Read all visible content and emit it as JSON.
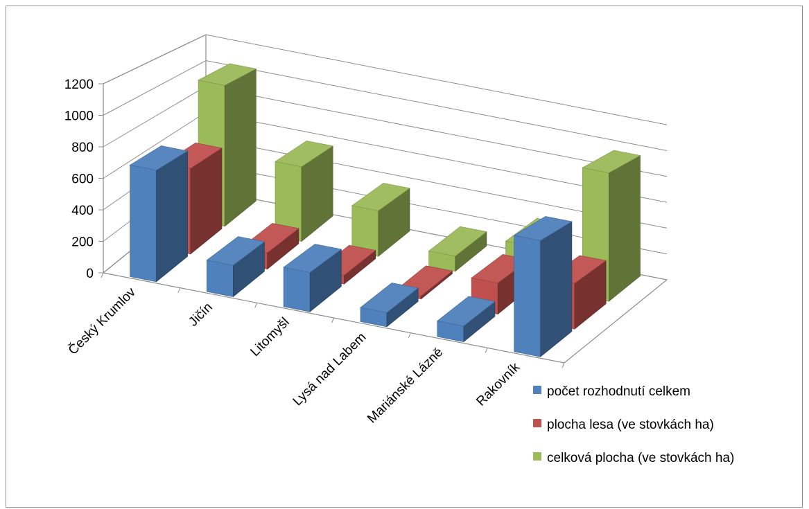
{
  "chart_data": {
    "type": "bar",
    "variant": "3d-column",
    "title": "",
    "xlabel": "",
    "ylabel": "",
    "categories": [
      "Český Krumlov",
      "Jičín",
      "Litomyšl",
      "Lysá nad Labem",
      "Mariánské Lázně",
      "Rakovník"
    ],
    "series": [
      {
        "name": "počet rozhodnutí celkem",
        "values": [
          710,
          200,
          250,
          90,
          100,
          740
        ],
        "color": "#4f81bd"
      },
      {
        "name": "plocha lesa (ve stovkách ha)",
        "values": [
          580,
          110,
          60,
          20,
          210,
          310
        ],
        "color": "#c0504d"
      },
      {
        "name": "celková plocha (ve stovkách ha)",
        "values": [
          1020,
          540,
          330,
          110,
          290,
          930
        ],
        "color": "#9bbb59"
      }
    ],
    "yticks": [
      "0",
      "200",
      "400",
      "600",
      "800",
      "1000",
      "1200"
    ],
    "ylim": [
      0,
      1200
    ],
    "grid": true,
    "legend_position": "bottom-right"
  }
}
